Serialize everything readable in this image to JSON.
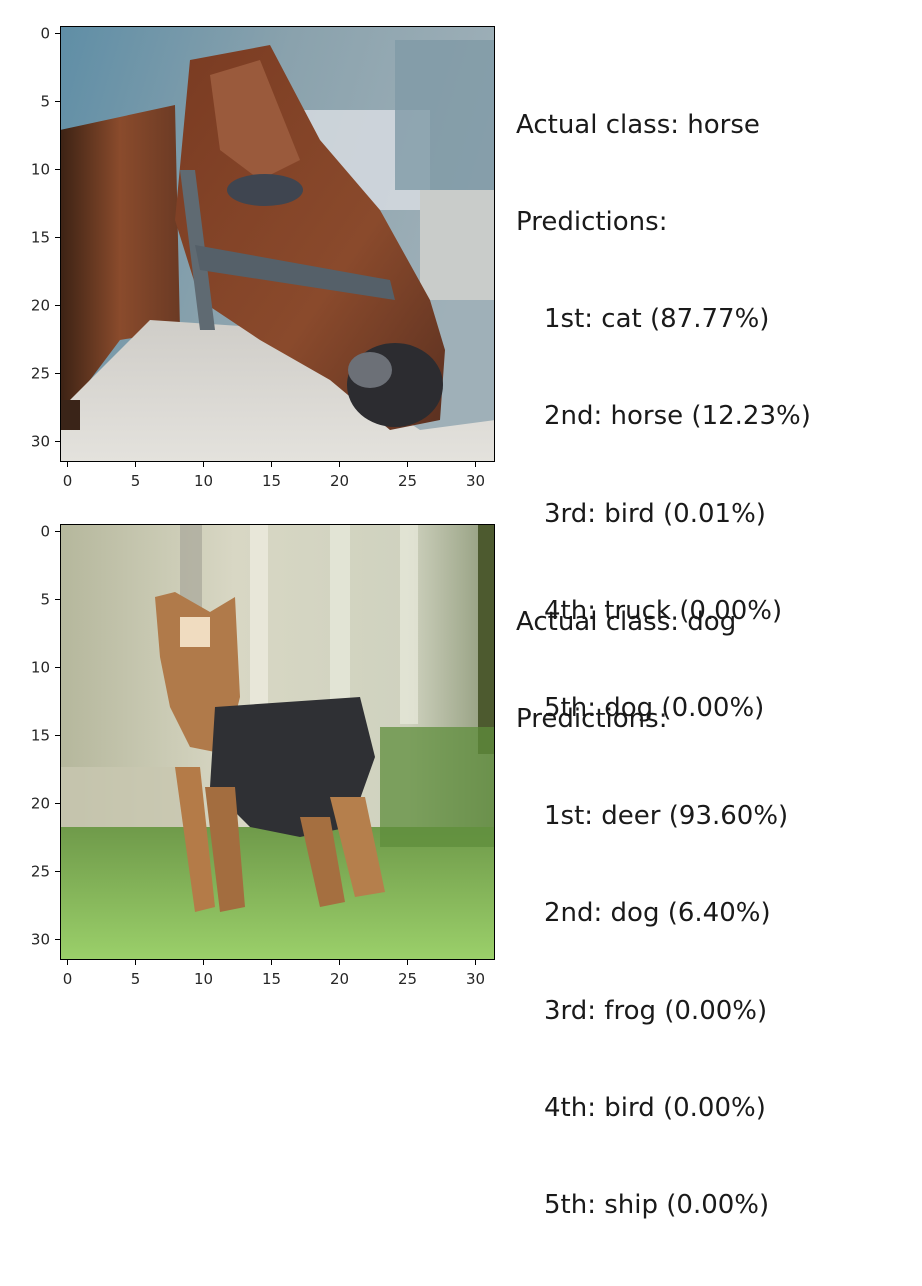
{
  "panels": [
    {
      "actual_label": "Actual class: horse",
      "predictions_label": "Predictions:",
      "predictions": [
        "1st: cat (87.77%)",
        "2nd: horse (12.23%)",
        "3rd: bird (0.01%)",
        "4th: truck (0.00%)",
        "5th: dog (0.00%)"
      ],
      "image": "horse-head-photo",
      "x_ticks": [
        "0",
        "5",
        "10",
        "15",
        "20",
        "25",
        "30"
      ],
      "y_ticks": [
        "0",
        "5",
        "10",
        "15",
        "20",
        "25",
        "30"
      ]
    },
    {
      "actual_label": "Actual class: dog",
      "predictions_label": "Predictions:",
      "predictions": [
        "1st: deer (93.60%)",
        "2nd: dog (6.40%)",
        "3rd: frog (0.00%)",
        "4th: bird (0.00%)",
        "5th: ship (0.00%)"
      ],
      "image": "dog-photo",
      "x_ticks": [
        "0",
        "5",
        "10",
        "15",
        "20",
        "25",
        "30"
      ],
      "y_ticks": [
        "0",
        "5",
        "10",
        "15",
        "20",
        "25",
        "30"
      ]
    }
  ]
}
